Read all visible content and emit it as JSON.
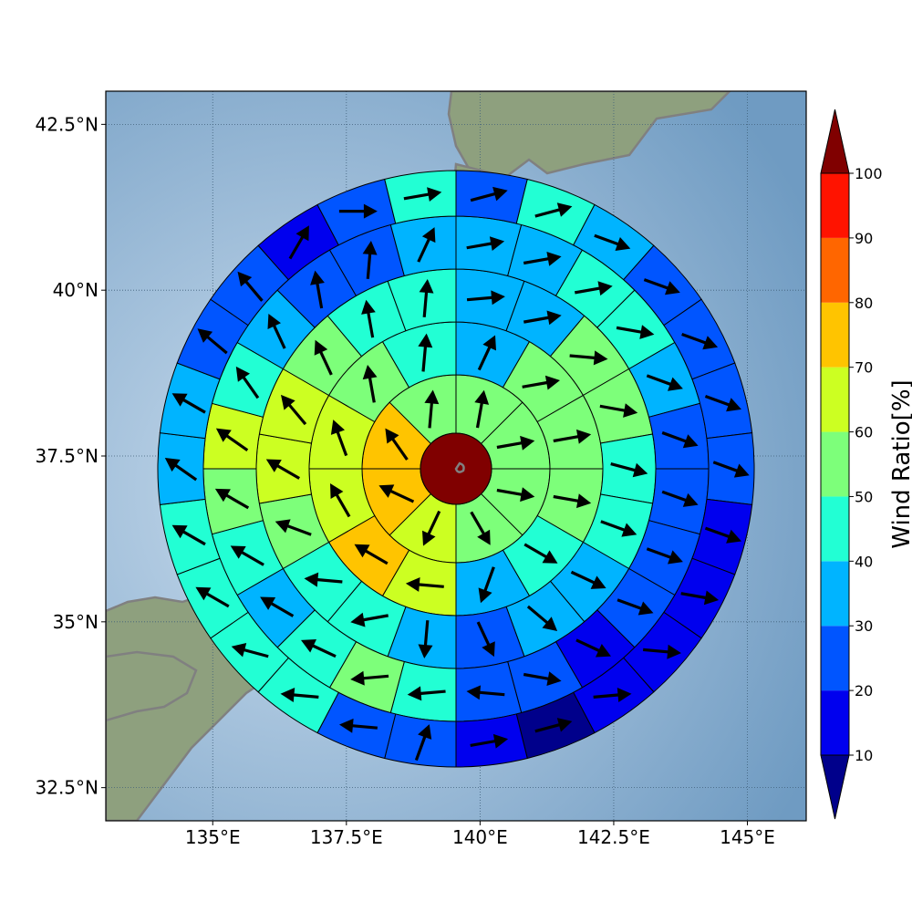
{
  "map": {
    "lat_ticks": [
      {
        "value": 42.5,
        "label": "42.5°N"
      },
      {
        "value": 40.0,
        "label": "40°N"
      },
      {
        "value": 37.5,
        "label": "37.5°N"
      },
      {
        "value": 35.0,
        "label": "35°N"
      },
      {
        "value": 32.5,
        "label": "32.5°N"
      }
    ],
    "lon_ticks": [
      {
        "value": 135.0,
        "label": "135°E"
      },
      {
        "value": 137.5,
        "label": "137.5°E"
      },
      {
        "value": 140.0,
        "label": "140°E"
      },
      {
        "value": 142.5,
        "label": "142.5°E"
      },
      {
        "value": 145.0,
        "label": "145°E"
      }
    ],
    "colors": {
      "ocean": "#8fb2d0",
      "land": "#8ea07e",
      "coastline": "#808080",
      "center": "#800000"
    }
  },
  "colorbar": {
    "label": "Wind Ratio[%]",
    "ticks": [
      "10",
      "20",
      "30",
      "40",
      "50",
      "60",
      "70",
      "80",
      "90",
      "100"
    ],
    "under_color": "#00008b",
    "over_color": "#800000",
    "bins": [
      {
        "from": 10,
        "to": 20,
        "color": "#0000ee"
      },
      {
        "from": 20,
        "to": 30,
        "color": "#0055ff"
      },
      {
        "from": 30,
        "to": 40,
        "color": "#00b4ff"
      },
      {
        "from": 40,
        "to": 50,
        "color": "#22ffd4"
      },
      {
        "from": 50,
        "to": 60,
        "color": "#7dff7a"
      },
      {
        "from": 60,
        "to": 70,
        "color": "#ccff22"
      },
      {
        "from": 70,
        "to": 80,
        "color": "#ffc400"
      },
      {
        "from": 80,
        "to": 90,
        "color": "#ff6600"
      },
      {
        "from": 90,
        "to": 100,
        "color": "#ff1300"
      }
    ]
  },
  "rings": [
    {
      "cells": [
        {
          "v": 55,
          "dir": 10
        },
        {
          "v": 55,
          "dir": 80
        },
        {
          "v": 55,
          "dir": 100
        },
        {
          "v": 55,
          "dir": 150
        },
        {
          "v": 65,
          "dir": 205
        },
        {
          "v": 75,
          "dir": 295
        },
        {
          "v": 75,
          "dir": 325
        },
        {
          "v": 55,
          "dir": 5
        }
      ]
    },
    {
      "cells": [
        {
          "v": 35,
          "dir": 25
        },
        {
          "v": 55,
          "dir": 80
        },
        {
          "v": 55,
          "dir": 80
        },
        {
          "v": 55,
          "dir": 100
        },
        {
          "v": 45,
          "dir": 120
        },
        {
          "v": 35,
          "dir": 200
        },
        {
          "v": 65,
          "dir": 275
        },
        {
          "v": 75,
          "dir": 300
        },
        {
          "v": 65,
          "dir": 330
        },
        {
          "v": 65,
          "dir": 340
        },
        {
          "v": 55,
          "dir": 350
        },
        {
          "v": 45,
          "dir": 5
        }
      ]
    },
    {
      "cells": [
        {
          "v": 35,
          "dir": 85
        },
        {
          "v": 35,
          "dir": 80
        },
        {
          "v": 55,
          "dir": 95
        },
        {
          "v": 55,
          "dir": 100
        },
        {
          "v": 45,
          "dir": 105
        },
        {
          "v": 45,
          "dir": 110
        },
        {
          "v": 35,
          "dir": 115
        },
        {
          "v": 35,
          "dir": 130
        },
        {
          "v": 25,
          "dir": 155
        },
        {
          "v": 35,
          "dir": 185
        },
        {
          "v": 45,
          "dir": 260
        },
        {
          "v": 45,
          "dir": 275
        },
        {
          "v": 55,
          "dir": 290
        },
        {
          "v": 65,
          "dir": 300
        },
        {
          "v": 65,
          "dir": 320
        },
        {
          "v": 55,
          "dir": 335
        },
        {
          "v": 45,
          "dir": 350
        },
        {
          "v": 45,
          "dir": 5
        }
      ]
    },
    {
      "cells": [
        {
          "v": 35,
          "dir": 80
        },
        {
          "v": 35,
          "dir": 80
        },
        {
          "v": 45,
          "dir": 80
        },
        {
          "v": 45,
          "dir": 100
        },
        {
          "v": 35,
          "dir": 110
        },
        {
          "v": 25,
          "dir": 110
        },
        {
          "v": 25,
          "dir": 110
        },
        {
          "v": 25,
          "dir": 110
        },
        {
          "v": 25,
          "dir": 110
        },
        {
          "v": 15,
          "dir": 115
        },
        {
          "v": 25,
          "dir": 100
        },
        {
          "v": 25,
          "dir": 275
        },
        {
          "v": 45,
          "dir": 265
        },
        {
          "v": 55,
          "dir": 265
        },
        {
          "v": 45,
          "dir": 295
        },
        {
          "v": 35,
          "dir": 300
        },
        {
          "v": 45,
          "dir": 300
        },
        {
          "v": 55,
          "dir": 300
        },
        {
          "v": 65,
          "dir": 305
        },
        {
          "v": 45,
          "dir": 325
        },
        {
          "v": 35,
          "dir": 335
        },
        {
          "v": 25,
          "dir": 350
        },
        {
          "v": 25,
          "dir": 5
        },
        {
          "v": 35,
          "dir": 25
        }
      ]
    },
    {
      "cells": [
        {
          "v": 25,
          "dir": 75
        },
        {
          "v": 45,
          "dir": 75
        },
        {
          "v": 35,
          "dir": 110
        },
        {
          "v": 25,
          "dir": 110
        },
        {
          "v": 25,
          "dir": 110
        },
        {
          "v": 25,
          "dir": 110
        },
        {
          "v": 25,
          "dir": 110
        },
        {
          "v": 15,
          "dir": 110
        },
        {
          "v": 15,
          "dir": 100
        },
        {
          "v": 15,
          "dir": 95
        },
        {
          "v": 15,
          "dir": 85
        },
        {
          "v": 5,
          "dir": 75
        },
        {
          "v": 15,
          "dir": 80
        },
        {
          "v": 25,
          "dir": 20
        },
        {
          "v": 25,
          "dir": 275
        },
        {
          "v": 45,
          "dir": 275
        },
        {
          "v": 45,
          "dir": 285
        },
        {
          "v": 45,
          "dir": 300
        },
        {
          "v": 45,
          "dir": 300
        },
        {
          "v": 35,
          "dir": 305
        },
        {
          "v": 35,
          "dir": 300
        },
        {
          "v": 25,
          "dir": 310
        },
        {
          "v": 25,
          "dir": 320
        },
        {
          "v": 15,
          "dir": 30
        },
        {
          "v": 25,
          "dir": 90
        },
        {
          "v": 45,
          "dir": 80
        }
      ]
    }
  ]
}
